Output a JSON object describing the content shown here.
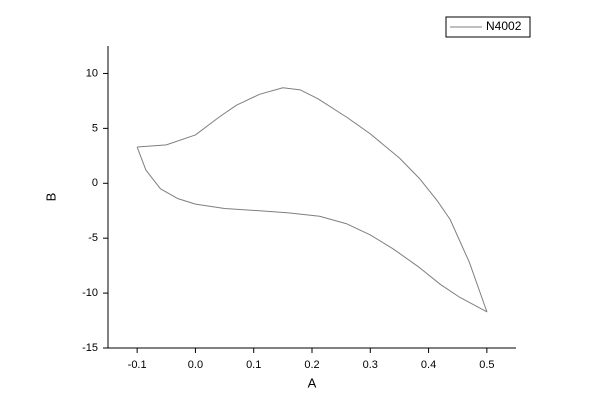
{
  "chart_data": {
    "type": "line",
    "x_label": "A",
    "y_label": "B",
    "xlim": [
      -0.15,
      0.55
    ],
    "xticks": [
      -0.1,
      {
        "value": 0,
        "label": "0.0"
      },
      0.1,
      0.2,
      0.3,
      0.4,
      0.5
    ],
    "ylim": [
      -15,
      12.5
    ],
    "yticks": [
      -15,
      -10,
      -5,
      0,
      5,
      10
    ],
    "grid": false,
    "legend": "upper right",
    "series": [
      {
        "name": "N4002",
        "color": "#7f7f7f",
        "x": [
          -0.1,
          -0.05,
          0,
          0.04,
          0.07,
          0.11,
          0.15,
          0.18,
          0.21,
          0.26,
          0.3,
          0.35,
          0.385,
          0.415,
          0.437,
          0.47,
          0.5,
          0.454,
          0.42,
          0.385,
          0.34,
          0.3,
          0.26,
          0.213,
          0.16,
          0.11,
          0.05,
          0,
          -0.03,
          -0.06,
          -0.085,
          -0.1
        ],
        "values": [
          3.3,
          3.5,
          4.4,
          6.0,
          7.1,
          8.1,
          8.7,
          8.5,
          7.7,
          6.0,
          4.5,
          2.3,
          0.4,
          -1.6,
          -3.3,
          -7.2,
          -11.7,
          -10.4,
          -9.2,
          -7.7,
          -6.0,
          -4.7,
          -3.7,
          -3.0,
          -2.7,
          -2.5,
          -2.3,
          -1.9,
          -1.4,
          -0.5,
          1.2,
          3.3
        ]
      }
    ]
  }
}
